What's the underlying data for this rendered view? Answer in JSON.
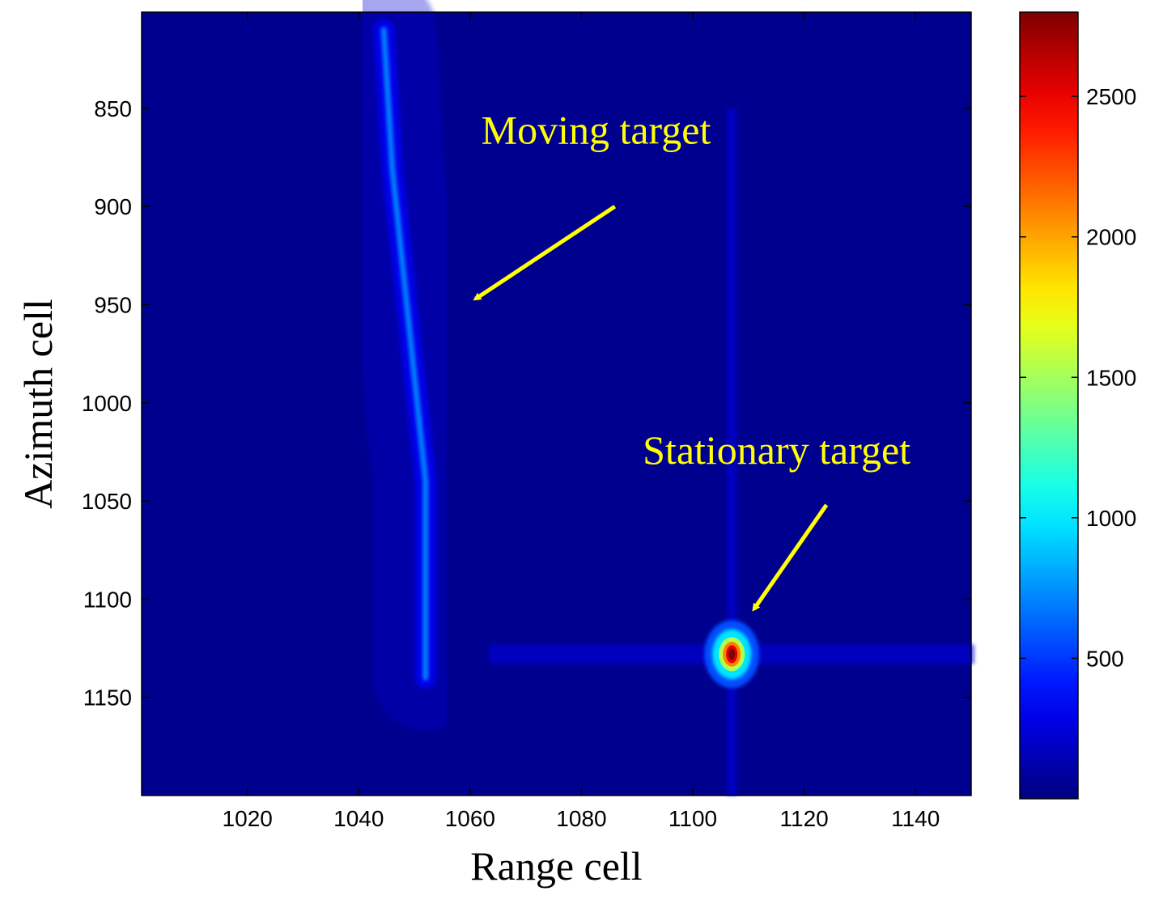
{
  "chart_data": {
    "type": "heatmap",
    "title": "",
    "xlabel": "Range cell",
    "ylabel": "Azimuth cell",
    "xlim": [
      1001,
      1150
    ],
    "ylim": [
      801,
      1200
    ],
    "y_reversed": true,
    "x_ticks": [
      1020,
      1040,
      1060,
      1080,
      1100,
      1120,
      1140
    ],
    "y_ticks": [
      850,
      900,
      950,
      1000,
      1050,
      1100,
      1150
    ],
    "colorbar": {
      "colormap": "jet",
      "range": [
        0,
        2800
      ],
      "ticks": [
        500,
        1000,
        1500,
        2000,
        2500
      ]
    },
    "features": [
      {
        "kind": "moving_target_streak",
        "path": [
          [
            1044.5,
            810
          ],
          [
            1046,
            880
          ],
          [
            1049,
            960
          ],
          [
            1052,
            1040
          ],
          [
            1052,
            1140
          ]
        ],
        "peak_value": 700
      },
      {
        "kind": "stationary_target_point",
        "x": 1107,
        "y": 1128,
        "peak_value": 2800
      }
    ],
    "annotations": [
      {
        "text": "Moving target",
        "text_at": [
          1062,
          868
        ],
        "arrow_from": [
          1086,
          900
        ],
        "arrow_to": [
          1061,
          947
        ]
      },
      {
        "text": "Stationary target",
        "text_at": [
          1091,
          1031
        ],
        "arrow_from": [
          1124,
          1052
        ],
        "arrow_to": [
          1111,
          1105
        ]
      }
    ],
    "colors": {
      "background": "#00008f",
      "annotation": "#ffff00"
    }
  }
}
